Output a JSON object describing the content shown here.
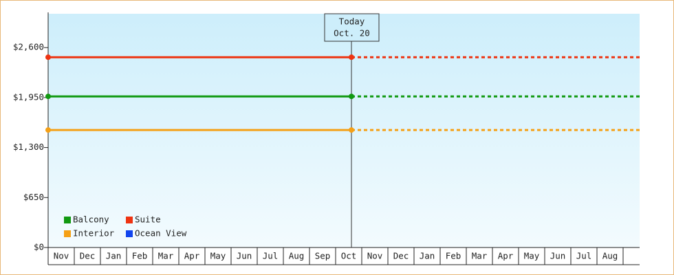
{
  "chart_data": {
    "type": "line",
    "categories": [
      "Nov",
      "Dec",
      "Jan",
      "Feb",
      "Mar",
      "Apr",
      "May",
      "Jun",
      "Jul",
      "Aug",
      "Sep",
      "Oct",
      "Nov",
      "Dec",
      "Jan",
      "Feb",
      "Mar",
      "Apr",
      "May",
      "Jun",
      "Jul",
      "Aug"
    ],
    "series": [
      {
        "name": "Balcony",
        "color": "#119911",
        "value": 1965
      },
      {
        "name": "Suite",
        "color": "#ee3311",
        "value": 2475
      },
      {
        "name": "Interior",
        "color": "#f5a015",
        "value": 1528
      },
      {
        "name": "Ocean View",
        "color": "#1144ee",
        "value": null
      }
    ],
    "today": {
      "title": "Today",
      "date": "Oct. 20"
    },
    "ylim": [
      0,
      3040
    ],
    "yticks": [
      {
        "value": 0,
        "label": "$0"
      },
      {
        "value": 650,
        "label": "$650"
      },
      {
        "value": 1300,
        "label": "$1,300"
      },
      {
        "value": 1950,
        "label": "$1,950"
      },
      {
        "value": 2600,
        "label": "$2,600"
      }
    ],
    "legend": "bottom-left"
  }
}
